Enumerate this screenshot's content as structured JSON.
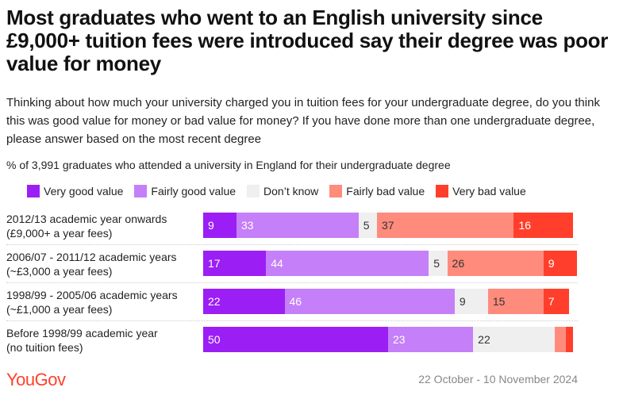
{
  "title": "Most graduates who went to an English university since £9,000+ tuition fees were introduced say their degree was poor value for money",
  "question": "Thinking about how much your university charged you in tuition fees for your undergraduate degree, do you think this was good value for money or bad value for money? If you have done more than one undergraduate degree, please answer based on the most recent degree",
  "base": "% of 3,991 graduates who attended a university in England for their undergraduate degree",
  "source_logo": "YouGov",
  "date": "22 October - 10 November 2024",
  "chart_data": {
    "type": "bar",
    "orientation": "horizontal",
    "stacked": true,
    "legend_position": "top",
    "categories": [
      [
        "2012/13 academic year onwards",
        "(£9,000+ a year fees)"
      ],
      [
        "2006/07 - 2011/12 academic years",
        "(~£3,000 a year fees)"
      ],
      [
        "1998/99 - 2005/06 academic years",
        "(~£1,000 a year fees)"
      ],
      [
        "Before 1998/99 academic year",
        "(no tuition fees)"
      ]
    ],
    "series": [
      {
        "name": "Very good value",
        "color": "#9b1ff5",
        "text_color": "#ffffff",
        "values": [
          9,
          17,
          22,
          50
        ]
      },
      {
        "name": "Fairly good value",
        "color": "#c57ff8",
        "text_color": "#ffffff",
        "values": [
          33,
          44,
          46,
          23
        ]
      },
      {
        "name": "Don’t know",
        "color": "#efefef",
        "text_color": "#333333",
        "values": [
          5,
          5,
          9,
          22
        ]
      },
      {
        "name": "Fairly bad value",
        "color": "#ff8b7c",
        "text_color": "#333333",
        "values": [
          37,
          26,
          15,
          3
        ]
      },
      {
        "name": "Very bad value",
        "color": "#ff3f2b",
        "text_color": "#ffffff",
        "values": [
          16,
          9,
          7,
          2
        ]
      }
    ],
    "label_min_value": 5
  }
}
